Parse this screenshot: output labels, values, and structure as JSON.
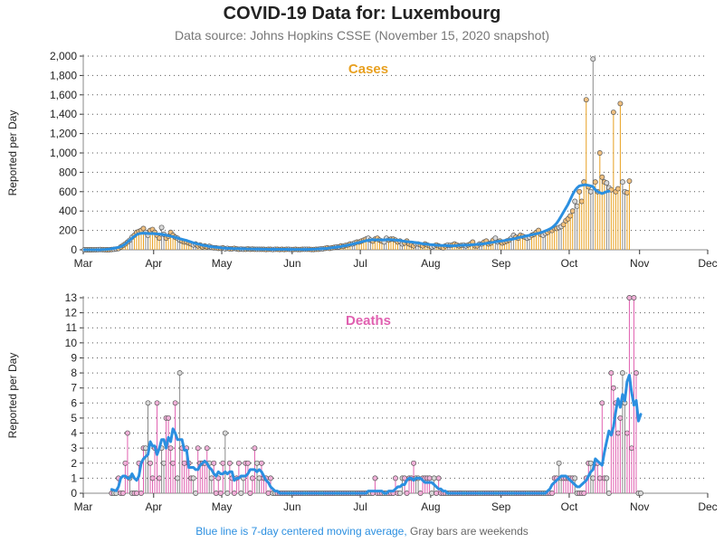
{
  "page": {
    "title": "COVID-19 Data for: Luxembourg",
    "subtitle": "Data source: Johns Hopkins CSSE (November 15, 2020 snapshot)",
    "footer_blue": "Blue line is 7-day centered moving average,",
    "footer_gray": "Gray bars are weekends"
  },
  "colors": {
    "cases": "#e8a020",
    "deaths": "#e060b0",
    "moving_average": "#2b8fe0",
    "weekend": "#8a8a8a",
    "marker_fill": "#f0c080",
    "marker_fill_deaths": "#f0b0d8"
  },
  "chart_data": [
    {
      "type": "bar",
      "title": "Cases",
      "ylabel": "Reported per Day",
      "xlabel": "",
      "ylim": [
        0,
        2000
      ],
      "yticks": [
        0,
        200,
        400,
        600,
        800,
        1000,
        1200,
        1400,
        1600,
        1800,
        2000
      ],
      "ytick_labels": [
        "0",
        "200",
        "400",
        "600",
        "800",
        "1,000",
        "1,200",
        "1,400",
        "1,600",
        "1,800",
        "2,000"
      ],
      "xlim": [
        "2020-03-01",
        "2020-12-01"
      ],
      "xtick_labels": [
        "Mar",
        "Apr",
        "May",
        "Jun",
        "Jul",
        "Aug",
        "Sep",
        "Oct",
        "Nov",
        "Dec"
      ],
      "grid": "horizontal dotted",
      "start_date": "2020-03-01",
      "values": [
        0,
        0,
        0,
        0,
        1,
        1,
        2,
        3,
        2,
        1,
        0,
        1,
        3,
        5,
        8,
        12,
        30,
        45,
        60,
        80,
        100,
        130,
        150,
        180,
        190,
        200,
        220,
        180,
        150,
        200,
        210,
        180,
        150,
        120,
        230,
        160,
        120,
        140,
        180,
        150,
        130,
        120,
        100,
        90,
        80,
        80,
        70,
        60,
        50,
        60,
        40,
        50,
        30,
        40,
        30,
        35,
        25,
        20,
        20,
        15,
        15,
        20,
        10,
        15,
        10,
        10,
        15,
        10,
        5,
        8,
        5,
        5,
        10,
        5,
        8,
        5,
        5,
        5,
        5,
        5,
        3,
        5,
        5,
        3,
        5,
        5,
        3,
        5,
        3,
        5,
        5,
        3,
        3,
        5,
        3,
        3,
        5,
        5,
        5,
        5,
        3,
        3,
        5,
        5,
        10,
        10,
        15,
        20,
        15,
        20,
        25,
        30,
        30,
        40,
        35,
        45,
        50,
        60,
        60,
        70,
        80,
        80,
        90,
        100,
        110,
        120,
        100,
        90,
        110,
        120,
        100,
        90,
        80,
        120,
        100,
        110,
        110,
        100,
        80,
        90,
        60,
        70,
        90,
        60,
        50,
        40,
        60,
        60,
        50,
        40,
        60,
        50,
        40,
        30,
        40,
        50,
        40,
        30,
        20,
        40,
        50,
        45,
        50,
        60,
        50,
        40,
        45,
        50,
        40,
        50,
        60,
        80,
        40,
        40,
        60,
        60,
        80,
        90,
        60,
        70,
        100,
        120,
        80,
        90,
        70,
        80,
        90,
        100,
        120,
        150,
        130,
        120,
        150,
        140,
        130,
        120,
        130,
        150,
        160,
        180,
        200,
        160,
        150,
        170,
        180,
        200,
        200,
        220,
        220,
        230,
        240,
        260,
        300,
        320,
        350,
        400,
        500,
        450,
        600,
        500,
        700,
        1550,
        650,
        600,
        1970,
        700,
        600,
        1000,
        750,
        700,
        690,
        640,
        620,
        1420,
        600,
        630,
        1510,
        700,
        600,
        590,
        710
      ],
      "moving_average": [
        0,
        0,
        0,
        0,
        0,
        0,
        0,
        0,
        2,
        3,
        5,
        7,
        10,
        15,
        20,
        25,
        32,
        45,
        60,
        80,
        100,
        120,
        140,
        155,
        165,
        170,
        172,
        170,
        168,
        167,
        168,
        167,
        164,
        163,
        160,
        155,
        150,
        145,
        140,
        135,
        130,
        122,
        113,
        108,
        102,
        96,
        88,
        80,
        72,
        66,
        60,
        54,
        48,
        44,
        40,
        35,
        32,
        28,
        26,
        23,
        21,
        19,
        17,
        15,
        14,
        13,
        12,
        11,
        10,
        10,
        9,
        9,
        8,
        8,
        8,
        7,
        7,
        7,
        6,
        6,
        6,
        5,
        5,
        5,
        5,
        5,
        5,
        5,
        5,
        5,
        4,
        4,
        4,
        4,
        4,
        4,
        4,
        4,
        4,
        5,
        5,
        6,
        7,
        8,
        10,
        11,
        13,
        15,
        18,
        21,
        24,
        27,
        30,
        34,
        38,
        43,
        48,
        53,
        58,
        64,
        70,
        76,
        82,
        88,
        93,
        97,
        101,
        104,
        103,
        103,
        102,
        102,
        102,
        104,
        105,
        104,
        103,
        101,
        98,
        95,
        92,
        88,
        85,
        82,
        80,
        78,
        74,
        70,
        66,
        62,
        60,
        57,
        54,
        52,
        50,
        48,
        46,
        45,
        44,
        43,
        42,
        41,
        41,
        42,
        44,
        46,
        47,
        48,
        48,
        49,
        50,
        52,
        54,
        56,
        58,
        60,
        62,
        66,
        70,
        74,
        78,
        82,
        86,
        90,
        92,
        95,
        100,
        104,
        108,
        112,
        118,
        124,
        130,
        135,
        140,
        145,
        150,
        155,
        160,
        165,
        170,
        178,
        186,
        195,
        205,
        215,
        230,
        250,
        275,
        310,
        350,
        390,
        430,
        470,
        520,
        570,
        610,
        640,
        660,
        665,
        670,
        670,
        665,
        660,
        650,
        620,
        600,
        590,
        580,
        590,
        600,
        605
      ],
      "weekend_note": "Gray bars are weekends"
    },
    {
      "type": "bar",
      "title": "Deaths",
      "ylabel": "Reported per Day",
      "xlabel": "",
      "ylim": [
        0,
        13
      ],
      "yticks": [
        0,
        1,
        2,
        3,
        4,
        5,
        6,
        7,
        8,
        9,
        10,
        11,
        12,
        13
      ],
      "ytick_labels": [
        "0",
        "1",
        "2",
        "3",
        "4",
        "5",
        "6",
        "7",
        "8",
        "9",
        "10",
        "11",
        "12",
        "13"
      ],
      "xlim": [
        "2020-03-01",
        "2020-12-01"
      ],
      "xtick_labels": [
        "Mar",
        "Apr",
        "May",
        "Jun",
        "Jul",
        "Aug",
        "Sep",
        "Oct",
        "Nov",
        "Dec"
      ],
      "grid": "horizontal dotted",
      "start_date": "2020-03-13",
      "values": [
        0,
        0,
        0,
        1,
        0,
        0,
        2,
        4,
        1,
        0,
        0,
        0,
        2,
        0,
        3,
        3,
        6,
        2,
        1,
        3,
        6,
        1,
        3,
        2,
        5,
        5,
        3,
        2,
        6,
        1,
        8,
        3,
        2,
        3,
        2,
        1,
        1,
        0,
        3,
        2,
        2,
        2,
        3,
        2,
        1,
        2,
        0,
        1,
        0,
        2,
        4,
        0,
        2,
        1,
        0,
        1,
        2,
        0,
        1,
        2,
        2,
        0,
        1,
        3,
        2,
        1,
        2,
        1,
        1,
        0,
        1,
        0,
        0,
        0,
        0,
        0,
        0,
        0,
        0,
        0,
        0,
        0,
        0,
        0,
        0,
        0,
        0,
        0,
        0,
        0,
        0,
        0,
        0,
        0,
        0,
        0,
        0,
        0,
        0,
        0,
        0,
        0,
        0,
        0,
        0,
        0,
        0,
        0,
        0,
        0,
        0,
        0,
        0,
        0,
        0,
        0,
        1,
        0,
        0,
        0,
        0,
        0,
        0,
        0,
        0,
        1,
        0,
        0,
        1,
        1,
        0,
        1,
        1,
        2,
        1,
        1,
        0,
        1,
        1,
        1,
        1,
        0,
        1,
        0,
        1,
        0,
        0,
        0,
        0,
        0,
        0,
        0,
        0,
        0,
        0,
        0,
        0,
        0,
        0,
        0,
        0,
        0,
        0,
        0,
        0,
        0,
        0,
        0,
        0,
        0,
        0,
        0,
        0,
        0,
        0,
        0,
        0,
        0,
        0,
        0,
        0,
        0,
        0,
        0,
        0,
        0,
        0,
        0,
        0,
        0,
        0,
        0,
        0,
        0,
        0,
        1,
        1,
        2,
        1,
        1,
        1,
        1,
        1,
        1,
        1,
        0,
        0,
        0,
        0,
        1,
        2,
        2,
        1,
        2,
        2,
        1,
        6,
        1,
        1,
        0,
        8,
        7,
        6,
        4,
        5,
        8,
        6,
        4,
        13,
        3,
        13,
        8,
        0,
        0
      ]
    }
  ]
}
